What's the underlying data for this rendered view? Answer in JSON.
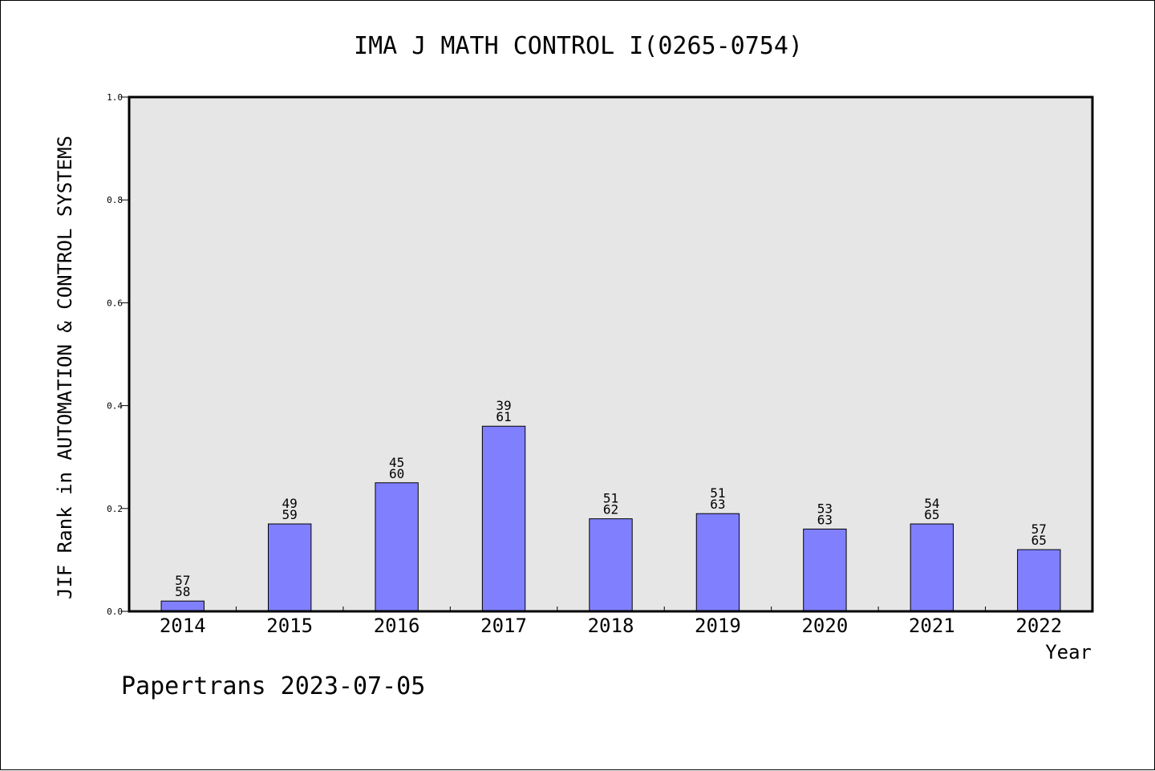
{
  "chart_data": {
    "type": "bar",
    "title": "IMA J MATH CONTROL I(0265-0754)",
    "xlabel": "Year",
    "ylabel": "JIF Rank in AUTOMATION & CONTROL SYSTEMS",
    "categories": [
      "2014",
      "2015",
      "2016",
      "2017",
      "2018",
      "2019",
      "2020",
      "2021",
      "2022"
    ],
    "values": [
      0.02,
      0.17,
      0.25,
      0.36,
      0.18,
      0.19,
      0.16,
      0.17,
      0.12
    ],
    "bar_labels": [
      {
        "top": "57",
        "bottom": "58"
      },
      {
        "top": "49",
        "bottom": "59"
      },
      {
        "top": "45",
        "bottom": "60"
      },
      {
        "top": "39",
        "bottom": "61"
      },
      {
        "top": "51",
        "bottom": "62"
      },
      {
        "top": "51",
        "bottom": "63"
      },
      {
        "top": "53",
        "bottom": "63"
      },
      {
        "top": "54",
        "bottom": "65"
      },
      {
        "top": "57",
        "bottom": "65"
      }
    ],
    "yticks": [
      "0.0",
      "0.2",
      "0.4",
      "0.6",
      "0.8",
      "1.0"
    ],
    "ylim": [
      0,
      1.0
    ],
    "grid": false,
    "colors": {
      "bar": "#8080ff",
      "plot_background": "#e6e6e6"
    }
  },
  "footer": "Papertrans 2023-07-05"
}
